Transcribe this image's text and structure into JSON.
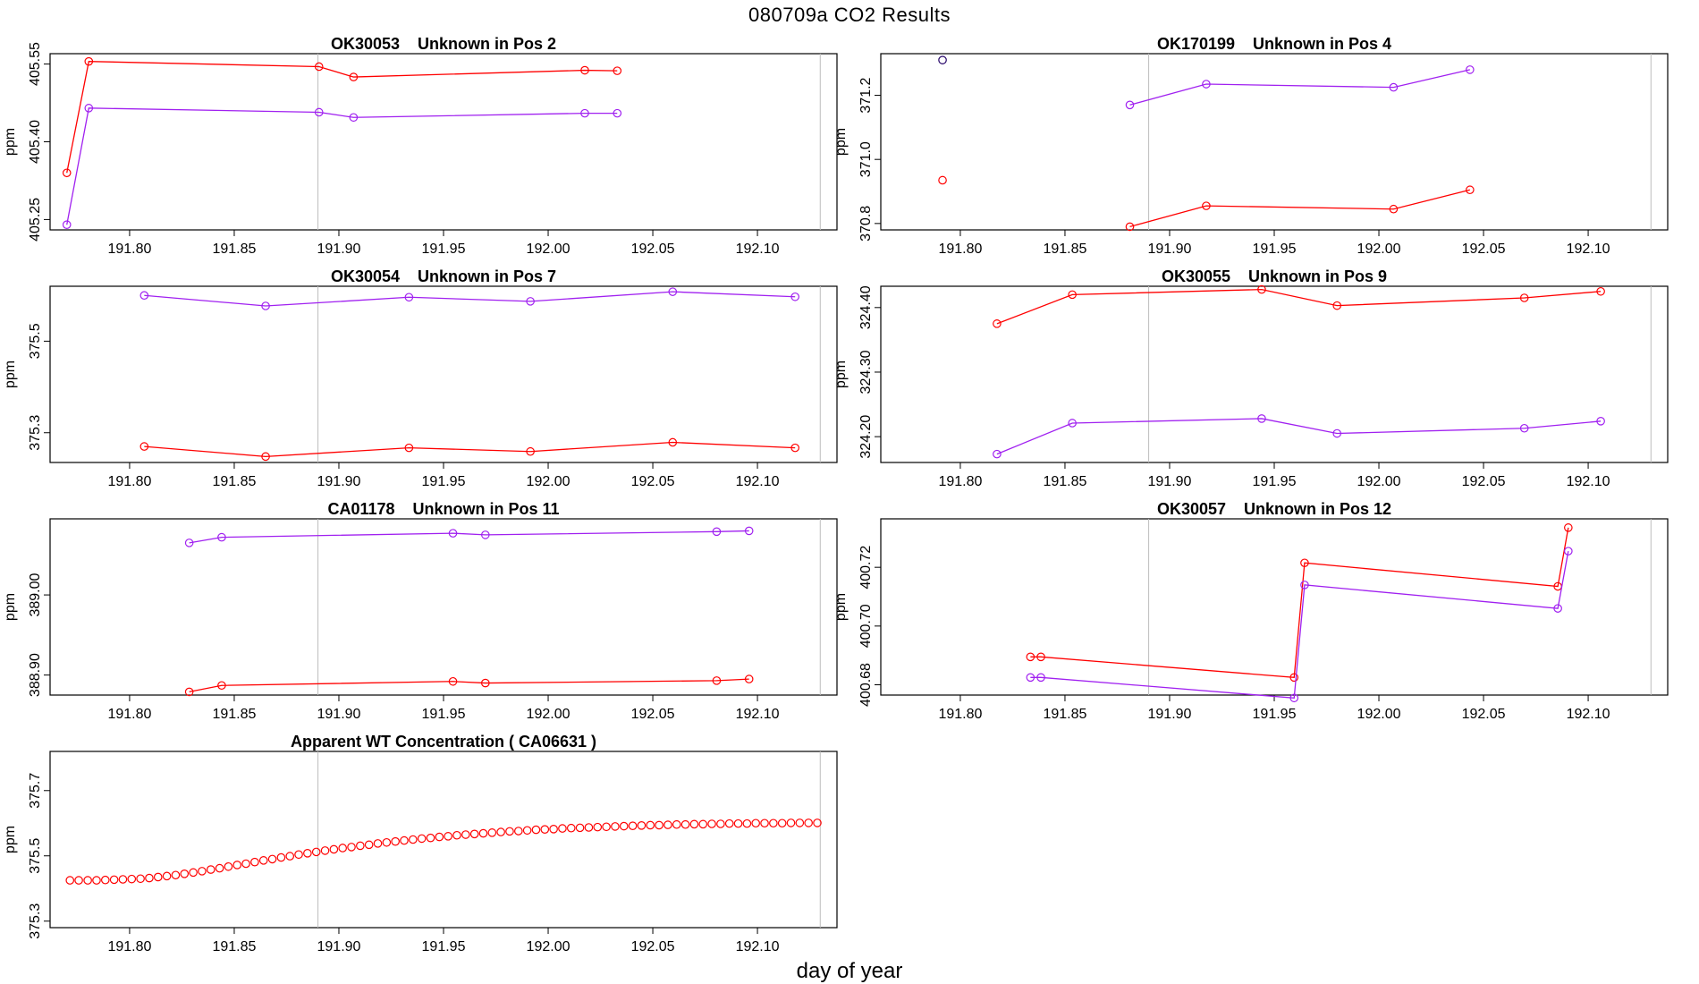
{
  "figure": {
    "title": "080709a  CO2 Results",
    "xlabel": "day of year"
  },
  "colors": {
    "series_red": "#ff0000",
    "series_purple": "#a020f0",
    "grid_line": "#bebebe",
    "odd_point": "#220066"
  },
  "chart_data": [
    {
      "type": "line",
      "title": "OK30053    Unknown in Pos 2",
      "ylabel": "ppm",
      "xlim": [
        191.762,
        192.138
      ],
      "ylim": [
        405.23,
        405.57
      ],
      "xticks": [
        "191.80",
        "191.85",
        "191.90",
        "191.95",
        "192.00",
        "192.05",
        "192.10"
      ],
      "yticks": [
        "405.25",
        "405.40",
        "405.55"
      ],
      "ref_x": [
        191.89,
        192.13
      ],
      "series": [
        {
          "color": "red",
          "x": [
            191.77,
            191.7805,
            191.8905,
            191.907,
            192.0175,
            192.033
          ],
          "y": [
            405.34,
            405.555,
            405.545,
            405.525,
            405.538,
            405.537
          ]
        },
        {
          "color": "purple",
          "x": [
            191.77,
            191.7805,
            191.8905,
            191.907,
            192.0175,
            192.033
          ],
          "y": [
            405.24,
            405.465,
            405.457,
            405.447,
            405.455,
            405.455
          ]
        }
      ]
    },
    {
      "type": "line",
      "title": "OK170199    Unknown in Pos 4",
      "ylabel": "ppm",
      "xlim": [
        191.762,
        192.138
      ],
      "ylim": [
        370.78,
        371.33
      ],
      "xticks": [
        "191.80",
        "191.85",
        "191.90",
        "191.95",
        "192.00",
        "192.05",
        "192.10"
      ],
      "yticks": [
        "370.8",
        "371.0",
        "371.2"
      ],
      "ref_x": [
        191.89,
        192.13
      ],
      "series": [
        {
          "color": "red",
          "x": [
            191.881,
            191.9175,
            192.007,
            192.0435
          ],
          "y": [
            370.79,
            370.855,
            370.845,
            370.905
          ]
        },
        {
          "color": "purple",
          "x": [
            191.881,
            191.9175,
            192.007,
            192.0435
          ],
          "y": [
            371.17,
            371.235,
            371.225,
            371.28
          ]
        },
        {
          "color": "odd",
          "x": [
            191.7915
          ],
          "y": [
            371.31
          ]
        },
        {
          "color": "red",
          "x": [
            191.7915
          ],
          "y": [
            370.935
          ]
        }
      ]
    },
    {
      "type": "line",
      "title": "OK30054    Unknown in Pos 7",
      "ylabel": "ppm",
      "xlim": [
        191.762,
        192.138
      ],
      "ylim": [
        375.235,
        375.62
      ],
      "xticks": [
        "191.80",
        "191.85",
        "191.90",
        "191.95",
        "192.00",
        "192.05",
        "192.10"
      ],
      "yticks": [
        "375.3",
        "375.5"
      ],
      "ref_x": [
        191.89,
        192.13
      ],
      "series": [
        {
          "color": "red",
          "x": [
            191.807,
            191.865,
            191.9335,
            191.9915,
            192.0595,
            192.118
          ],
          "y": [
            375.27,
            375.248,
            375.267,
            375.259,
            375.279,
            375.267
          ]
        },
        {
          "color": "purple",
          "x": [
            191.807,
            191.865,
            191.9335,
            191.9915,
            192.0595,
            192.118
          ],
          "y": [
            375.6,
            375.577,
            375.596,
            375.587,
            375.608,
            375.597
          ]
        }
      ]
    },
    {
      "type": "line",
      "title": "OK30055    Unknown in Pos 9",
      "ylabel": "ppm",
      "xlim": [
        191.762,
        192.138
      ],
      "ylim": [
        324.16,
        324.433
      ],
      "xticks": [
        "191.80",
        "191.85",
        "191.90",
        "191.95",
        "192.00",
        "192.05",
        "192.10"
      ],
      "yticks": [
        "324.20",
        "324.30",
        "324.40"
      ],
      "ref_x": [
        191.89,
        192.13
      ],
      "series": [
        {
          "color": "red",
          "x": [
            191.8175,
            191.8535,
            191.944,
            191.98,
            192.0695,
            192.106
          ],
          "y": [
            324.375,
            324.42,
            324.428,
            324.403,
            324.415,
            324.425
          ]
        },
        {
          "color": "purple",
          "x": [
            191.8175,
            191.8535,
            191.944,
            191.98,
            192.0695,
            192.106
          ],
          "y": [
            324.173,
            324.221,
            324.228,
            324.205,
            324.213,
            324.224
          ]
        }
      ]
    },
    {
      "type": "line",
      "title": "CA01178    Unknown in Pos 11",
      "ylabel": "ppm",
      "xlim": [
        191.762,
        192.138
      ],
      "ylim": [
        388.875,
        389.095
      ],
      "xticks": [
        "191.80",
        "191.85",
        "191.90",
        "191.95",
        "192.00",
        "192.05",
        "192.10"
      ],
      "yticks": [
        "388.90",
        "389.00"
      ],
      "ref_x": [
        191.89,
        192.13
      ],
      "series": [
        {
          "color": "red",
          "x": [
            191.8285,
            191.844,
            191.9545,
            191.97,
            192.0805,
            192.096
          ],
          "y": [
            388.879,
            388.887,
            388.892,
            388.89,
            388.893,
            388.895
          ]
        },
        {
          "color": "purple",
          "x": [
            191.8285,
            191.844,
            191.9545,
            191.97,
            192.0805,
            192.096
          ],
          "y": [
            389.065,
            389.072,
            389.077,
            389.075,
            389.079,
            389.08
          ]
        }
      ]
    },
    {
      "type": "line",
      "title": "OK30057    Unknown in Pos 12",
      "ylabel": "ppm",
      "xlim": [
        191.762,
        192.138
      ],
      "ylim": [
        400.6765,
        400.7365
      ],
      "xticks": [
        "191.80",
        "191.85",
        "191.90",
        "191.95",
        "192.00",
        "192.05",
        "192.10"
      ],
      "yticks": [
        "400.68",
        "400.70",
        "400.72"
      ],
      "ref_x": [
        191.89,
        192.13
      ],
      "series": [
        {
          "color": "red",
          "x": [
            191.8335,
            191.8385,
            191.9595,
            191.9645,
            192.0855,
            192.0905
          ],
          "y": [
            400.6895,
            400.6895,
            400.6825,
            400.7215,
            400.7135,
            400.7335
          ]
        },
        {
          "color": "purple",
          "x": [
            191.8335,
            191.8385,
            191.9595,
            191.9645,
            192.0855,
            192.0905
          ],
          "y": [
            400.6825,
            400.6825,
            400.6755,
            400.714,
            400.706,
            400.7255
          ]
        }
      ]
    },
    {
      "type": "scatter",
      "title": "Apparent WT Concentration ( CA06631 )",
      "ylabel": "ppm",
      "xlim": [
        191.762,
        192.138
      ],
      "ylim": [
        375.28,
        375.82
      ],
      "xticks": [
        "191.80",
        "191.85",
        "191.90",
        "191.95",
        "192.00",
        "192.05",
        "192.10"
      ],
      "yticks": [
        "375.3",
        "375.5",
        "375.7"
      ],
      "ref_x": [
        191.89,
        192.13
      ],
      "series": [
        {
          "color": "red",
          "x": [
            191.7715,
            191.7757,
            191.78,
            191.7842,
            191.7884,
            191.7926,
            191.7968,
            191.801,
            191.8052,
            191.8094,
            191.8136,
            191.8178,
            191.822,
            191.8262,
            191.8304,
            191.8346,
            191.8388,
            191.843,
            191.8472,
            191.8514,
            191.8556,
            191.8598,
            191.864,
            191.8682,
            191.8724,
            191.8766,
            191.8808,
            191.885,
            191.8892,
            191.8934,
            191.8976,
            191.9018,
            191.906,
            191.9102,
            191.9144,
            191.9186,
            191.9228,
            191.927,
            191.9312,
            191.9354,
            191.9396,
            191.9438,
            191.948,
            191.9522,
            191.9564,
            191.9606,
            191.9648,
            191.969,
            191.9732,
            191.9774,
            191.9816,
            191.9858,
            191.99,
            191.9942,
            191.9984,
            192.0026,
            192.0068,
            192.011,
            192.0152,
            192.0194,
            192.0236,
            192.0278,
            192.032,
            192.0362,
            192.0404,
            192.0446,
            192.0488,
            192.053,
            192.0572,
            192.0614,
            192.0656,
            192.0698,
            192.074,
            192.0782,
            192.0824,
            192.0866,
            192.0908,
            192.095,
            192.0992,
            192.1034,
            192.1076,
            192.1118,
            192.116,
            192.1202,
            192.1244,
            192.1286
          ],
          "y": [
            375.425,
            375.425,
            375.425,
            375.425,
            375.426,
            375.427,
            375.428,
            375.429,
            375.43,
            375.432,
            375.435,
            375.438,
            375.441,
            375.445,
            375.449,
            375.453,
            375.458,
            375.462,
            375.467,
            375.472,
            375.476,
            375.481,
            375.486,
            375.49,
            375.495,
            375.499,
            375.504,
            375.508,
            375.512,
            375.516,
            375.52,
            375.524,
            375.527,
            375.531,
            375.534,
            375.538,
            375.541,
            375.544,
            375.547,
            375.55,
            375.553,
            375.555,
            375.558,
            375.56,
            375.563,
            375.565,
            375.567,
            375.569,
            375.571,
            375.573,
            375.575,
            375.576,
            375.578,
            375.58,
            375.581,
            375.582,
            375.584,
            375.585,
            375.586,
            375.587,
            375.588,
            375.589,
            375.59,
            375.591,
            375.592,
            375.593,
            375.594,
            375.594,
            375.595,
            375.596,
            375.596,
            375.597,
            375.597,
            375.598,
            375.598,
            375.599,
            375.599,
            375.599,
            375.6,
            375.6,
            375.6,
            375.6,
            375.601,
            375.601,
            375.601,
            375.601
          ]
        }
      ]
    }
  ]
}
